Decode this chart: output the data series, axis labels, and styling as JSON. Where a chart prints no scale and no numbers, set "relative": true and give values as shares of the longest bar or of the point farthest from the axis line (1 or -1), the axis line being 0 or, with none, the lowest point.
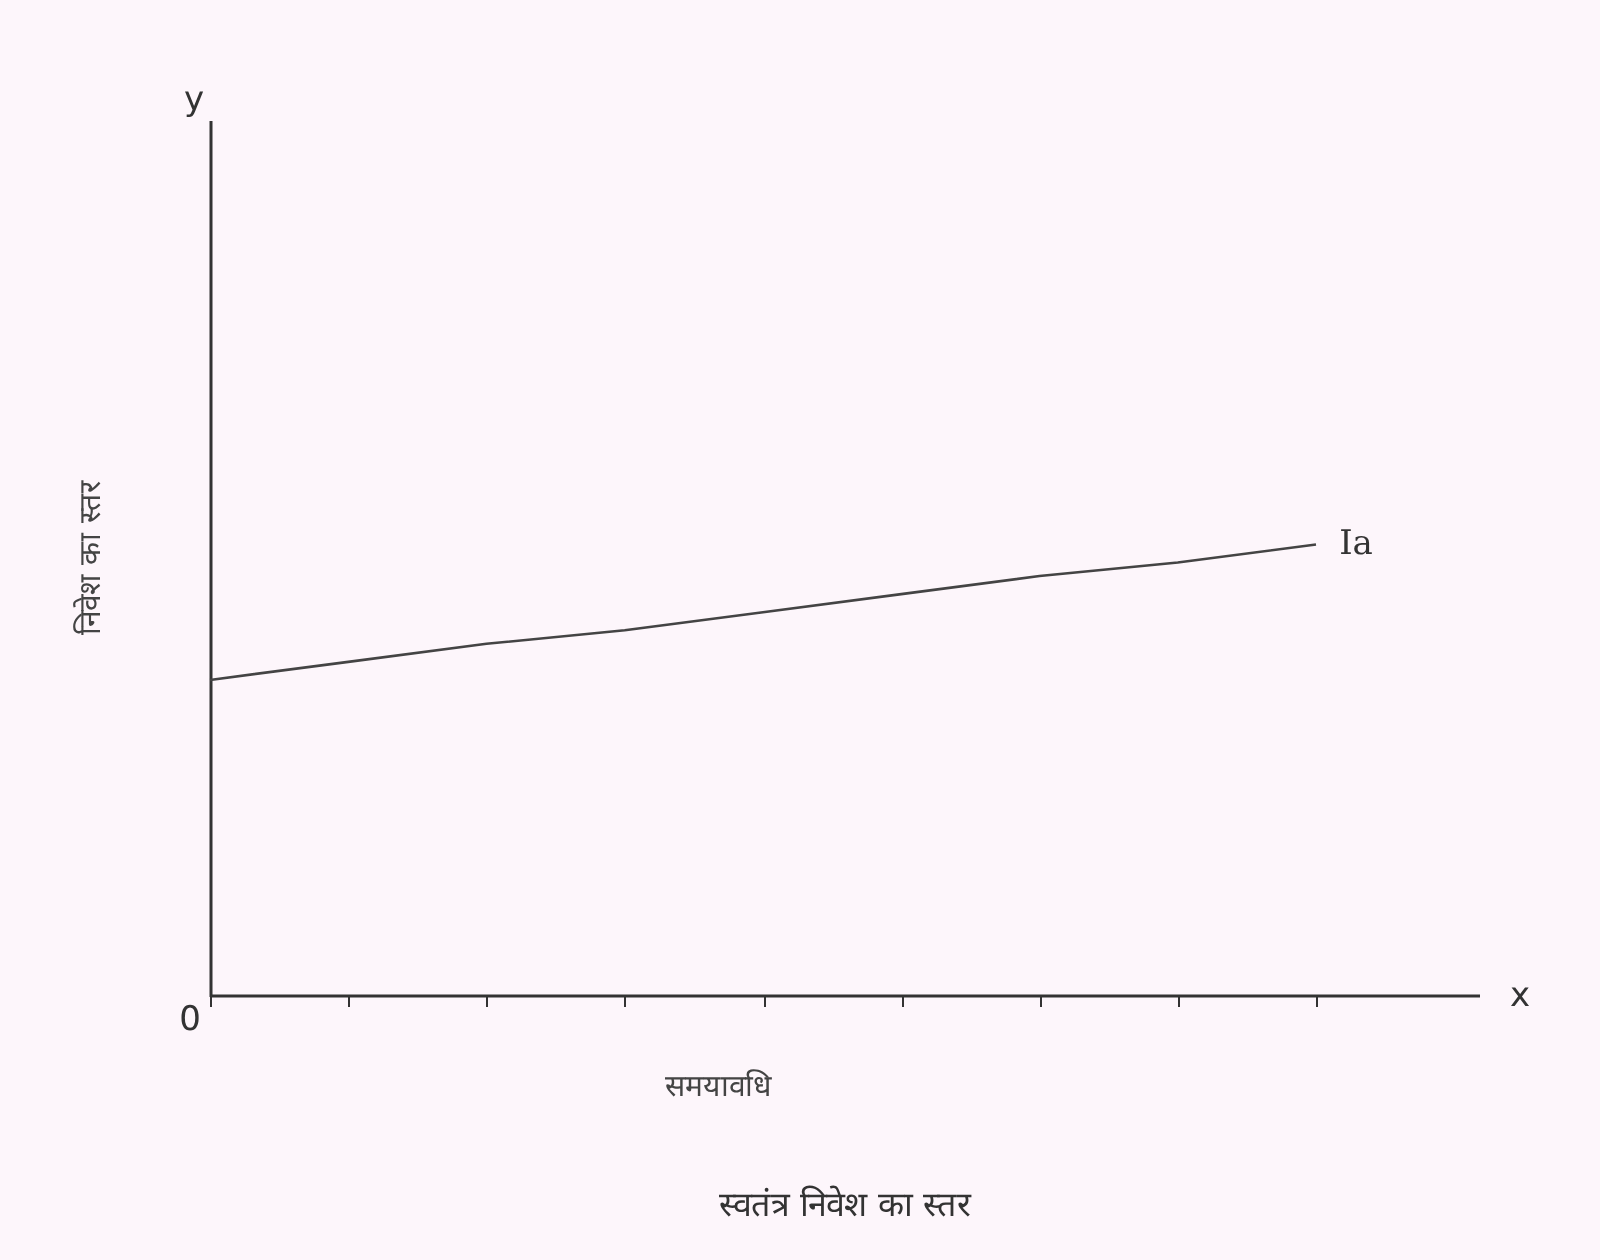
{
  "chart_data": {
    "type": "line",
    "title": "स्वतंत्र निवेश का स्तर",
    "xlabel": "समयावधि",
    "ylabel": "निवेश का स्तर",
    "relative": true,
    "grid": false,
    "marker": "none",
    "line_style": "solid",
    "categories": [
      null,
      null,
      null,
      null,
      null,
      null,
      null,
      null,
      null
    ],
    "series": [
      {
        "color": "#444444",
        "values": [
          0.7,
          0.74,
          0.78,
          0.81,
          0.85,
          0.89,
          0.93,
          0.96,
          1
        ]
      }
    ],
    "annotations": [
      "y",
      "x",
      "0",
      "Ia"
    ]
  }
}
